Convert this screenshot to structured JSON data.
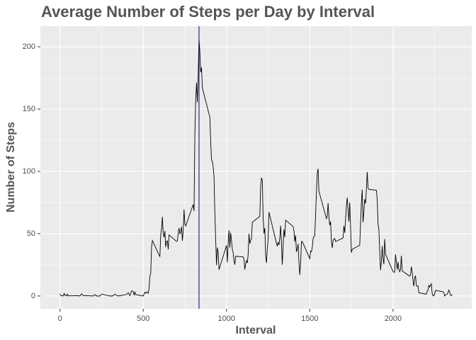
{
  "chart_data": {
    "type": "line",
    "title": "Average Number of Steps per Day by Interval",
    "x_label": "Interval",
    "y_label": "Number of Steps",
    "x": [
      0,
      5,
      10,
      15,
      20,
      25,
      30,
      35,
      40,
      45,
      50,
      55,
      100,
      110,
      120,
      130,
      140,
      150,
      200,
      210,
      220,
      230,
      240,
      250,
      300,
      310,
      320,
      330,
      340,
      350,
      400,
      410,
      420,
      430,
      440,
      445,
      450,
      455,
      500,
      505,
      510,
      515,
      520,
      525,
      530,
      535,
      540,
      545,
      550,
      555,
      600,
      605,
      610,
      615,
      620,
      625,
      630,
      635,
      640,
      645,
      650,
      655,
      700,
      705,
      710,
      715,
      720,
      725,
      730,
      735,
      740,
      745,
      750,
      755,
      800,
      805,
      810,
      815,
      820,
      825,
      830,
      835,
      840,
      845,
      850,
      855,
      900,
      905,
      910,
      915,
      920,
      925,
      930,
      935,
      940,
      945,
      950,
      955,
      1000,
      1005,
      1010,
      1015,
      1020,
      1025,
      1030,
      1035,
      1040,
      1045,
      1050,
      1055,
      1100,
      1105,
      1110,
      1115,
      1120,
      1125,
      1130,
      1135,
      1140,
      1145,
      1150,
      1155,
      1200,
      1205,
      1210,
      1215,
      1220,
      1225,
      1230,
      1235,
      1240,
      1245,
      1250,
      1255,
      1300,
      1305,
      1310,
      1315,
      1320,
      1325,
      1330,
      1335,
      1340,
      1345,
      1350,
      1355,
      1400,
      1405,
      1410,
      1415,
      1420,
      1425,
      1430,
      1435,
      1440,
      1445,
      1450,
      1455,
      1500,
      1505,
      1510,
      1515,
      1520,
      1525,
      1530,
      1535,
      1540,
      1545,
      1550,
      1555,
      1600,
      1605,
      1610,
      1615,
      1620,
      1625,
      1630,
      1635,
      1640,
      1645,
      1650,
      1655,
      1700,
      1705,
      1710,
      1715,
      1720,
      1725,
      1730,
      1735,
      1740,
      1745,
      1750,
      1755,
      1800,
      1805,
      1810,
      1815,
      1820,
      1825,
      1830,
      1835,
      1840,
      1845,
      1850,
      1855,
      1900,
      1905,
      1910,
      1915,
      1920,
      1925,
      1930,
      1935,
      1940,
      1945,
      1950,
      1955,
      2000,
      2005,
      2010,
      2015,
      2020,
      2025,
      2030,
      2035,
      2040,
      2045,
      2050,
      2055,
      2100,
      2105,
      2110,
      2115,
      2120,
      2125,
      2130,
      2135,
      2140,
      2145,
      2150,
      2155,
      2200,
      2205,
      2210,
      2215,
      2220,
      2225,
      2230,
      2235,
      2240,
      2245,
      2250,
      2255,
      2300,
      2305,
      2310,
      2315,
      2320,
      2325,
      2330,
      2335,
      2340,
      2345,
      2350,
      2355
    ],
    "series": [
      {
        "color": "#000000",
        "values": [
          1.7,
          0.3,
          0.1,
          0.2,
          0.1,
          2.1,
          0.5,
          0.9,
          0,
          1.5,
          0.3,
          0.1,
          0.3,
          0.2,
          0,
          1.8,
          0.2,
          0.3,
          0,
          1.1,
          0,
          0,
          0,
          1.5,
          0,
          0,
          0.2,
          1.6,
          0.5,
          0,
          1.2,
          2.6,
          0.3,
          4.1,
          3.5,
          0.8,
          3.1,
          1.1,
          0,
          1.6,
          3,
          2.2,
          3.3,
          3,
          2.1,
          6.1,
          16,
          18.3,
          39.5,
          44.5,
          31.5,
          49.3,
          53.8,
          63.5,
          50,
          47.1,
          52.2,
          39.3,
          44,
          44.2,
          37.4,
          49,
          43.8,
          44.4,
          50.5,
          54.5,
          49.9,
          51,
          55.7,
          44.3,
          52.3,
          69.5,
          57.8,
          56.2,
          73.4,
          68.2,
          129.4,
          157.5,
          171.2,
          155.4,
          177.3,
          206.2,
          195.9,
          179.6,
          183.4,
          167,
          143.5,
          124,
          109.1,
          108.1,
          103.7,
          96,
          66.2,
          45.2,
          24.8,
          38.8,
          35,
          21.1,
          40.6,
          27,
          42.4,
          52.7,
          38.9,
          50.8,
          44.3,
          37.4,
          34.7,
          28.3,
          25.1,
          31.9,
          31.4,
          29.7,
          21.3,
          25.5,
          28.4,
          26.5,
          33.4,
          50,
          42,
          44.6,
          46,
          59.2,
          63.9,
          87.7,
          94.8,
          92.8,
          63.4,
          50.2,
          54.5,
          32.4,
          26.5,
          37.7,
          45.1,
          67.3,
          42.3,
          39.9,
          43.3,
          41,
          46.2,
          56.4,
          42.8,
          25.1,
          40,
          53.5,
          47.3,
          60.8,
          55.8,
          52,
          43.6,
          48.7,
          35.5,
          37.5,
          41.8,
          27.5,
          17.1,
          26.1,
          43.6,
          43.8,
          30,
          36.1,
          35.5,
          38.8,
          46,
          47.8,
          48.1,
          65.3,
          82.9,
          98.7,
          102.1,
          84,
          62.1,
          64.1,
          74.5,
          63.2,
          56.9,
          59.8,
          43.9,
          38.6,
          44.7,
          45.5,
          46.2,
          43.7,
          46.6,
          56.3,
          50.7,
          61.2,
          72.7,
          78.9,
          68.9,
          59.7,
          75.1,
          56.5,
          34.8,
          37.5,
          40.7,
          58,
          74.7,
          85.3,
          59.3,
          67.8,
          77.7,
          74.2,
          85.3,
          99.5,
          86.6,
          85.6,
          84.9,
          77.8,
          58,
          53.4,
          36.3,
          20.7,
          27.4,
          40,
          30.2,
          25.5,
          45.7,
          33.5,
          19.6,
          19,
          19.3,
          33.3,
          26.8,
          21.2,
          27.3,
          21.3,
          19.5,
          21.3,
          32.3,
          20.2,
          15.9,
          17.2,
          23.5,
          19.2,
          12.5,
          8,
          14.7,
          16.3,
          8.7,
          7.8,
          8.1,
          2.6,
          1.5,
          3.7,
          4.8,
          8.5,
          7.1,
          8.7,
          9.8,
          2.2,
          0.3,
          0.1,
          1.6,
          4.6,
          3.3,
          2.8,
          0,
          0.8,
          1,
          1.6,
          2.6,
          4.7,
          3.3,
          0.6,
          0.2,
          1.1
        ]
      }
    ],
    "vline": {
      "x": 835,
      "color": "#00008b"
    },
    "xlim": [
      -117.75,
      2472.75
    ],
    "ylim": [
      -10.3,
      216.5
    ],
    "xticks": [
      0,
      500,
      1000,
      1500,
      2000
    ],
    "yticks": [
      0,
      50,
      100,
      150,
      200
    ],
    "xminor": [
      250,
      750,
      1250,
      1750,
      2250
    ],
    "yminor": [
      25,
      75,
      125,
      175
    ],
    "grid": true
  }
}
